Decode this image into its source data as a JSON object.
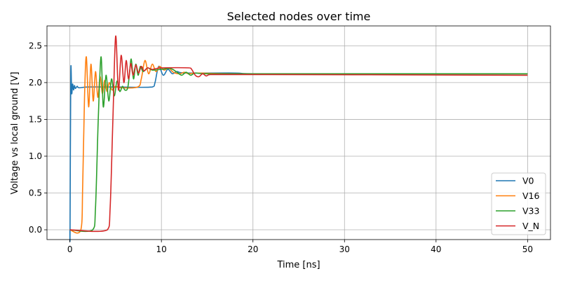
{
  "chart_data": {
    "type": "line",
    "title": "Selected nodes over time",
    "xlabel": "Time [ns]",
    "ylabel": "Voltage vs local ground [V]",
    "xlim": [
      -2.5,
      52.5
    ],
    "ylim": [
      -0.133,
      2.77
    ],
    "xticks": [
      0,
      10,
      20,
      30,
      40,
      50
    ],
    "xtick_labels": [
      "0",
      "10",
      "20",
      "30",
      "40",
      "50"
    ],
    "yticks": [
      0,
      0.5,
      1,
      1.5,
      2,
      2.5
    ],
    "ytick_labels": [
      "0.0",
      "0.5",
      "1.0",
      "1.5",
      "2.0",
      "2.5"
    ],
    "grid": true,
    "legend_position": "bottom-right",
    "series": [
      {
        "name": "V0",
        "color": "#1f77b4",
        "points": [
          [
            0,
            0
          ],
          [
            0.02,
            0
          ],
          [
            0.1,
            2.14
          ],
          [
            0.2,
            1.85
          ],
          [
            0.3,
            1.98
          ],
          [
            0.4,
            1.9
          ],
          [
            0.5,
            1.96
          ],
          [
            0.6,
            1.92
          ],
          [
            0.8,
            1.95
          ],
          [
            1,
            1.93
          ],
          [
            2,
            1.94
          ],
          [
            5,
            1.94
          ],
          [
            9,
            1.94
          ],
          [
            9.3,
            2.0
          ],
          [
            9.7,
            2.22
          ],
          [
            10.2,
            2.1
          ],
          [
            10.7,
            2.18
          ],
          [
            11.2,
            2.12
          ],
          [
            11.7,
            2.15
          ],
          [
            12.5,
            2.13
          ],
          [
            18,
            2.13
          ],
          [
            20,
            2.12
          ],
          [
            50,
            2.12
          ]
        ]
      },
      {
        "name": "V16",
        "color": "#ff7f0e",
        "points": [
          [
            0,
            0
          ],
          [
            1.2,
            0
          ],
          [
            1.4,
            0.6
          ],
          [
            1.6,
            1.8
          ],
          [
            1.8,
            2.35
          ],
          [
            2.05,
            1.67
          ],
          [
            2.3,
            2.25
          ],
          [
            2.55,
            1.75
          ],
          [
            2.8,
            2.15
          ],
          [
            3.05,
            1.8
          ],
          [
            3.3,
            2.08
          ],
          [
            3.55,
            1.85
          ],
          [
            3.8,
            2.03
          ],
          [
            4.05,
            1.88
          ],
          [
            4.3,
            2.0
          ],
          [
            4.6,
            1.9
          ],
          [
            5,
            1.95
          ],
          [
            5.5,
            1.93
          ],
          [
            7.4,
            1.94
          ],
          [
            7.8,
            2.05
          ],
          [
            8.2,
            2.3
          ],
          [
            8.6,
            2.12
          ],
          [
            9,
            2.25
          ],
          [
            9.4,
            2.15
          ],
          [
            9.8,
            2.22
          ],
          [
            10.3,
            2.17
          ],
          [
            10.8,
            2.2
          ],
          [
            11.3,
            2.14
          ],
          [
            12,
            2.12
          ],
          [
            12.5,
            2.14
          ],
          [
            13,
            2.12
          ],
          [
            14,
            2.13
          ],
          [
            20,
            2.12
          ],
          [
            50,
            2.12
          ]
        ]
      },
      {
        "name": "V33",
        "color": "#2ca02c",
        "points": [
          [
            0,
            0
          ],
          [
            2.5,
            0
          ],
          [
            2.8,
            0.3
          ],
          [
            3.1,
            1.5
          ],
          [
            3.4,
            2.35
          ],
          [
            3.65,
            1.67
          ],
          [
            3.95,
            2.1
          ],
          [
            4.25,
            1.75
          ],
          [
            4.55,
            2.05
          ],
          [
            4.85,
            1.82
          ],
          [
            5.15,
            2.02
          ],
          [
            5.45,
            1.88
          ],
          [
            5.75,
            1.95
          ],
          [
            6,
            1.9
          ],
          [
            6.3,
            1.92
          ],
          [
            6.5,
            2.1
          ],
          [
            6.7,
            2.32
          ],
          [
            6.95,
            2.05
          ],
          [
            7.2,
            2.25
          ],
          [
            7.45,
            2.1
          ],
          [
            7.7,
            2.22
          ],
          [
            8,
            2.15
          ],
          [
            8.5,
            2.2
          ],
          [
            9,
            2.17
          ],
          [
            10,
            2.18
          ],
          [
            11,
            2.19
          ],
          [
            11.6,
            2.15
          ],
          [
            12.2,
            2.1
          ],
          [
            12.7,
            2.14
          ],
          [
            13.2,
            2.1
          ],
          [
            13.7,
            2.13
          ],
          [
            15,
            2.12
          ],
          [
            50,
            2.12
          ]
        ]
      },
      {
        "name": "V_N",
        "color": "#d62728",
        "points": [
          [
            0,
            0
          ],
          [
            4.1,
            0
          ],
          [
            4.4,
            0.3
          ],
          [
            4.7,
            1.5
          ],
          [
            5.0,
            2.63
          ],
          [
            5.3,
            1.9
          ],
          [
            5.6,
            2.37
          ],
          [
            5.9,
            2.0
          ],
          [
            6.15,
            2.3
          ],
          [
            6.4,
            2.05
          ],
          [
            6.65,
            2.26
          ],
          [
            6.9,
            2.1
          ],
          [
            7.2,
            2.24
          ],
          [
            7.5,
            2.13
          ],
          [
            7.8,
            2.22
          ],
          [
            8.1,
            2.16
          ],
          [
            8.5,
            2.2
          ],
          [
            9,
            2.18
          ],
          [
            10,
            2.2
          ],
          [
            13,
            2.2
          ],
          [
            13.3,
            2.18
          ],
          [
            13.7,
            2.1
          ],
          [
            14.1,
            2.08
          ],
          [
            14.5,
            2.12
          ],
          [
            14.9,
            2.09
          ],
          [
            15.5,
            2.11
          ],
          [
            50,
            2.1
          ]
        ]
      }
    ]
  }
}
